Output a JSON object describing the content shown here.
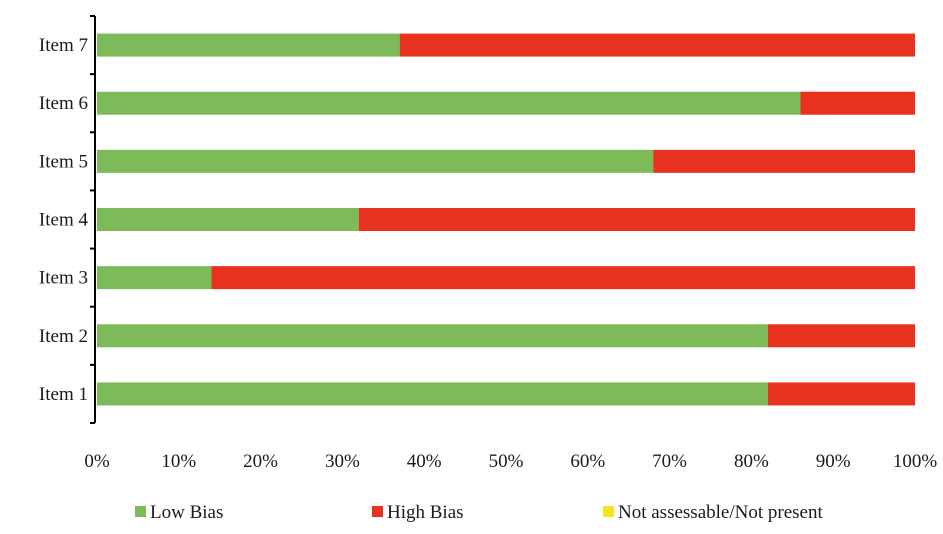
{
  "chart_data": {
    "type": "bar",
    "orientation": "horizontal",
    "stacked": true,
    "percent_stacked": true,
    "categories": [
      "Item 1",
      "Item 2",
      "Item 3",
      "Item 4",
      "Item 5",
      "Item 6",
      "Item 7"
    ],
    "series": [
      {
        "name": "Low Bias",
        "color": "#7dbb5a",
        "values": [
          82,
          82,
          14,
          32,
          68,
          86,
          37
        ]
      },
      {
        "name": "High Bias",
        "color": "#e8321f",
        "values": [
          18,
          18,
          86,
          68,
          32,
          14,
          63
        ]
      },
      {
        "name": "Not assessable/Not present",
        "color": "#f4e31e",
        "values": [
          0,
          0,
          0,
          0,
          0,
          0,
          0
        ]
      }
    ],
    "x_ticks": [
      "0%",
      "10%",
      "20%",
      "30%",
      "40%",
      "50%",
      "60%",
      "70%",
      "80%",
      "90%",
      "100%"
    ],
    "xlim": [
      0,
      100
    ],
    "grid": false,
    "legend_position": "bottom"
  }
}
